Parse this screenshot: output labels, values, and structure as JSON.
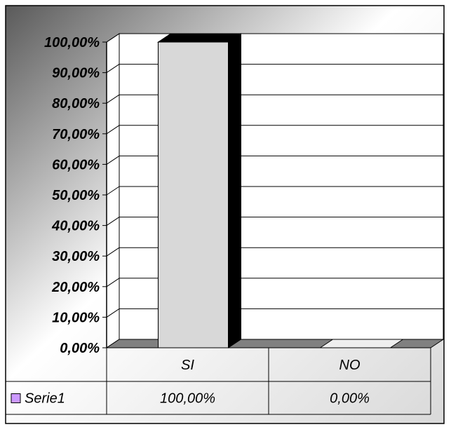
{
  "chart_data": {
    "type": "bar",
    "categories": [
      "SI",
      "NO"
    ],
    "series": [
      {
        "name": "Serie1",
        "values": [
          100,
          0
        ],
        "labels": [
          "100,00%",
          "0,00%"
        ],
        "color": "#d8d8d8"
      }
    ],
    "legend_key_color": "#cc99ff",
    "ylim": [
      0,
      100
    ],
    "yticks": [
      "0,00%",
      "10,00%",
      "20,00%",
      "30,00%",
      "40,00%",
      "50,00%",
      "60,00%",
      "70,00%",
      "80,00%",
      "90,00%",
      "100,00%"
    ],
    "grid": true,
    "three_d": true,
    "data_table": true,
    "title": "",
    "xlabel": "",
    "ylabel": ""
  }
}
